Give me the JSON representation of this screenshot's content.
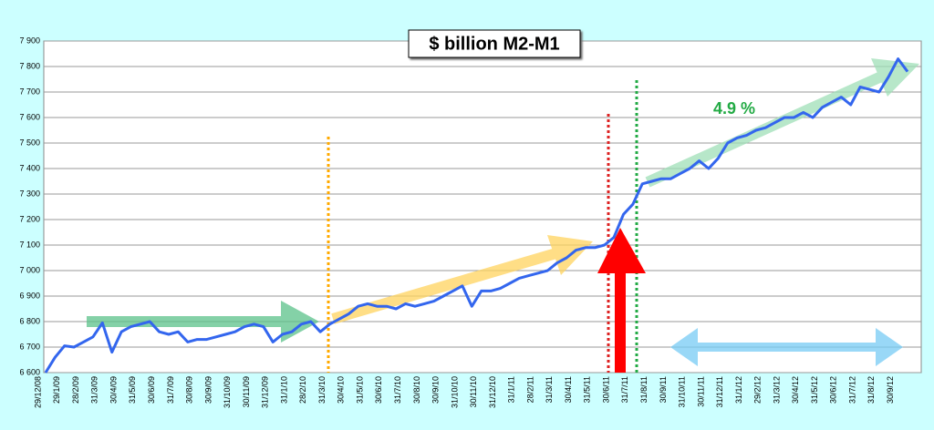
{
  "chart_data": {
    "type": "line",
    "title": "$ billion M2-M1",
    "annotation": "4.9 %",
    "categories": [
      "29/12/08",
      null,
      "29/1/09",
      null,
      "28/2/09",
      null,
      "31/3/09",
      null,
      "30/4/09",
      null,
      "31/5/09",
      null,
      "30/6/09",
      null,
      "31/7/09",
      null,
      "30/8/09",
      null,
      "30/9/09",
      null,
      "31/10/09",
      null,
      "30/11/09",
      null,
      "31/12/09",
      null,
      "31/1/10",
      null,
      "28/2/10",
      null,
      "31/3/10",
      null,
      "30/4/10",
      null,
      "31/5/10",
      null,
      "30/6/10",
      null,
      "31/7/10",
      null,
      "30/8/10",
      null,
      "30/9/10",
      null,
      "31/10/10",
      null,
      "30/11/10",
      null,
      "31/12/10",
      null,
      "31/1/11",
      null,
      "28/2/11",
      null,
      "31/3/11",
      null,
      "30/4/11",
      null,
      "31/5/11",
      null,
      "30/6/11",
      null,
      "31/7/11",
      null,
      "31/8/11",
      null,
      "30/9/11",
      null,
      "31/10/11",
      null,
      "30/11/11",
      null,
      "31/12/11",
      null,
      "31/1/12",
      null,
      "29/2/12",
      null,
      "31/3/12",
      null,
      "30/4/12",
      null,
      "31/5/12",
      null,
      "30/6/12",
      null,
      "31/7/12",
      null,
      "31/8/12",
      null,
      "30/9/12",
      null
    ],
    "series": [
      {
        "color": "#3366ee",
        "values": [
          6600,
          6660,
          6705,
          6700,
          6720,
          6740,
          6795,
          6680,
          6760,
          6780,
          6790,
          6800,
          6760,
          6750,
          6760,
          6720,
          6730,
          6730,
          6740,
          6750,
          6760,
          6780,
          6790,
          6780,
          6720,
          6750,
          6760,
          6790,
          6800,
          6760,
          6790,
          6810,
          6830,
          6860,
          6870,
          6860,
          6860,
          6850,
          6870,
          6860,
          6870,
          6880,
          6900,
          6920,
          6940,
          6860,
          6920,
          6920,
          6930,
          6950,
          6970,
          6980,
          6990,
          7000,
          7030,
          7050,
          7080,
          7090,
          7090,
          7100,
          7130,
          7220,
          7260,
          7340,
          7350,
          7360,
          7360,
          7380,
          7400,
          7430,
          7400,
          7440,
          7500,
          7520,
          7530,
          7550,
          7560,
          7580,
          7600,
          7600,
          7620,
          7600,
          7640,
          7660,
          7680,
          7650,
          7720,
          7710,
          7700,
          7760,
          7830,
          7780
        ]
      }
    ],
    "ylim": [
      6600,
      7900
    ],
    "yticks": [
      {
        "value": 6600,
        "label": "6 600"
      },
      {
        "value": 6700,
        "label": "6 700"
      },
      {
        "value": 6800,
        "label": "6 800"
      },
      {
        "value": 6900,
        "label": "6 900"
      },
      {
        "value": 7000,
        "label": "7 000"
      },
      {
        "value": 7100,
        "label": "7 100"
      },
      {
        "value": 7200,
        "label": "7 200"
      },
      {
        "value": 7300,
        "label": "7 300"
      },
      {
        "value": 7400,
        "label": "7 400"
      },
      {
        "value": 7500,
        "label": "7 500"
      },
      {
        "value": 7600,
        "label": "7 600"
      },
      {
        "value": 7700,
        "label": "7 700"
      },
      {
        "value": 7800,
        "label": "7 800"
      },
      {
        "value": 7900,
        "label": "7 900"
      }
    ],
    "grid": true
  }
}
